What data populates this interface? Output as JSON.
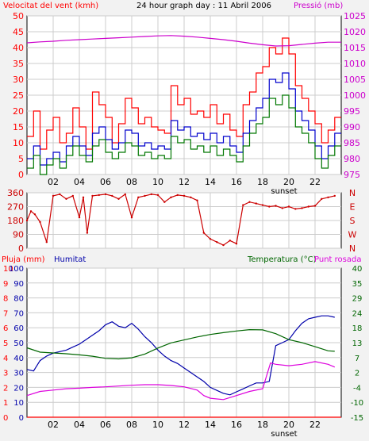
{
  "header": {
    "wind_label": "Velocitat del vent (kmh)",
    "title": "24 hour graph day : 11 Abril 2006",
    "pressure_label": "Pressió (mb)"
  },
  "middle": {
    "direction_letters": [
      "N",
      "W",
      "S",
      "E",
      "N"
    ]
  },
  "bottom": {
    "rain_label": "Pluja (mm)",
    "humidity_label": "Humitat",
    "temperature_label": "Temperatura (°C)",
    "dewpoint_label": "Punt rosada"
  },
  "colors": {
    "wind_gust": "#ff0000",
    "wind_avg": "#0000cc",
    "wind_min": "#007700",
    "pressure": "#cc00cc",
    "direction": "#cc0000",
    "humidity": "#0000aa",
    "temperature": "#006600",
    "dewpoint": "#dd00dd",
    "rain": "#ff0000",
    "grid": "#cccccc",
    "frame": "#000000",
    "plot_bg": "#ffffff",
    "page_bg": "#f2f2f2"
  },
  "chart_data": [
    {
      "type": "line",
      "title": "24 hour graph day : 11 Abril 2006",
      "x_tick_labels": [
        "02",
        "04",
        "06",
        "08",
        "10",
        "12",
        "14",
        "16",
        "18",
        "20",
        "22"
      ],
      "x_ticks": [
        2,
        4,
        6,
        8,
        10,
        12,
        14,
        16,
        18,
        20,
        22
      ],
      "xlim": [
        0,
        24
      ],
      "x_annotation": "sunset",
      "x_annotation_at": 20,
      "ylabel_left": "Velocitat del vent (kmh)",
      "ylim_left": [
        0,
        50
      ],
      "y_ticks_left": [
        0,
        5,
        10,
        15,
        20,
        25,
        30,
        35,
        40,
        45,
        50
      ],
      "ylabel_right": "Pressió (mb)",
      "ylim_right": [
        975,
        1025
      ],
      "y_ticks_right": [
        975,
        980,
        985,
        990,
        995,
        1000,
        1005,
        1010,
        1015,
        1020,
        1025
      ],
      "grid": true,
      "series": [
        {
          "name": "",
          "axis": "left",
          "color": "#ff0000",
          "x": [
            0,
            0.5,
            1,
            1.5,
            2,
            2.5,
            3,
            3.5,
            4,
            4.5,
            5,
            5.5,
            6,
            6.5,
            7,
            7.5,
            8,
            8.5,
            9,
            9.5,
            10,
            10.5,
            11,
            11.5,
            12,
            12.5,
            13,
            13.5,
            14,
            14.5,
            15,
            15.5,
            16,
            16.5,
            17,
            17.5,
            18,
            18.5,
            19,
            19.5,
            20,
            20.5,
            21,
            21.5,
            22,
            22.5,
            23,
            23.5
          ],
          "y": [
            12,
            20,
            8,
            14,
            18,
            10,
            13,
            21,
            15,
            8,
            26,
            22,
            18,
            10,
            16,
            24,
            21,
            16,
            18,
            15,
            14,
            13,
            28,
            22,
            24,
            19,
            20,
            18,
            22,
            16,
            19,
            14,
            12,
            22,
            26,
            32,
            34,
            40,
            38,
            43,
            38,
            28,
            24,
            20,
            16,
            10,
            14,
            18
          ]
        },
        {
          "name": "",
          "axis": "left",
          "color": "#0000cc",
          "x": [
            0,
            0.5,
            1,
            1.5,
            2,
            2.5,
            3,
            3.5,
            4,
            4.5,
            5,
            5.5,
            6,
            6.5,
            7,
            7.5,
            8,
            8.5,
            9,
            9.5,
            10,
            10.5,
            11,
            11.5,
            12,
            12.5,
            13,
            13.5,
            14,
            14.5,
            15,
            15.5,
            16,
            16.5,
            17,
            17.5,
            18,
            18.5,
            19,
            19.5,
            20,
            20.5,
            21,
            21.5,
            22,
            22.5,
            23,
            23.5
          ],
          "y": [
            5,
            9,
            3,
            5,
            7,
            4,
            9,
            12,
            9,
            6,
            13,
            15,
            11,
            8,
            10,
            14,
            13,
            9,
            10,
            8,
            9,
            8,
            17,
            14,
            15,
            12,
            13,
            11,
            13,
            10,
            12,
            9,
            7,
            13,
            17,
            21,
            24,
            30,
            29,
            32,
            27,
            20,
            17,
            14,
            9,
            5,
            9,
            13
          ]
        },
        {
          "name": "",
          "axis": "left",
          "color": "#007700",
          "x": [
            0,
            0.5,
            1,
            1.5,
            2,
            2.5,
            3,
            3.5,
            4,
            4.5,
            5,
            5.5,
            6,
            6.5,
            7,
            7.5,
            8,
            8.5,
            9,
            9.5,
            10,
            10.5,
            11,
            11.5,
            12,
            12.5,
            13,
            13.5,
            14,
            14.5,
            15,
            15.5,
            16,
            16.5,
            17,
            17.5,
            18,
            18.5,
            19,
            19.5,
            20,
            20.5,
            21,
            21.5,
            22,
            22.5,
            23,
            23.5
          ],
          "y": [
            2,
            6,
            0,
            3,
            5,
            2,
            6,
            9,
            6,
            4,
            9,
            11,
            7,
            5,
            7,
            10,
            9,
            6,
            7,
            5,
            6,
            5,
            12,
            10,
            11,
            8,
            9,
            7,
            9,
            6,
            8,
            6,
            4,
            9,
            13,
            16,
            18,
            24,
            22,
            25,
            21,
            15,
            13,
            10,
            5,
            2,
            6,
            9
          ]
        },
        {
          "name": "",
          "axis": "right",
          "color": "#cc00cc",
          "x": [
            0,
            1,
            2,
            3,
            4,
            5,
            6,
            7,
            8,
            9,
            10,
            11,
            12,
            13,
            14,
            15,
            16,
            17,
            18,
            19,
            20,
            21,
            22,
            23,
            24
          ],
          "y": [
            1016.5,
            1016.8,
            1017.0,
            1017.3,
            1017.5,
            1017.7,
            1017.9,
            1018.1,
            1018.3,
            1018.5,
            1018.7,
            1018.8,
            1018.6,
            1018.3,
            1017.9,
            1017.5,
            1017.0,
            1016.4,
            1015.9,
            1015.5,
            1015.6,
            1016.0,
            1016.4,
            1016.7,
            1016.7
          ]
        }
      ]
    },
    {
      "type": "scatter",
      "x_tick_labels": [],
      "xlim": [
        0,
        24
      ],
      "ylim": [
        0,
        360
      ],
      "y_ticks_left": [
        0,
        90,
        180,
        270,
        360
      ],
      "right_labels": [
        "N",
        "W",
        "S",
        "E",
        "N"
      ],
      "grid": true,
      "series": [
        {
          "name": "",
          "color": "#cc0000",
          "x": [
            0,
            0.3,
            0.6,
            1,
            1.5,
            2,
            2.5,
            3,
            3.5,
            4,
            4.3,
            4.6,
            5,
            5.5,
            6,
            6.5,
            7,
            7.5,
            8,
            8.5,
            9,
            9.5,
            10,
            10.5,
            11,
            11.5,
            12,
            12.5,
            13,
            13.5,
            14,
            14.5,
            15,
            15.5,
            16,
            16.5,
            17,
            17.5,
            18,
            18.5,
            19,
            19.5,
            20,
            20.5,
            21,
            21.5,
            22,
            22.5,
            23,
            23.5
          ],
          "y": [
            180,
            240,
            220,
            170,
            40,
            340,
            350,
            320,
            340,
            200,
            330,
            100,
            340,
            345,
            350,
            340,
            320,
            350,
            200,
            330,
            340,
            350,
            345,
            300,
            330,
            345,
            340,
            330,
            310,
            100,
            60,
            40,
            20,
            50,
            30,
            280,
            300,
            290,
            280,
            270,
            275,
            260,
            270,
            255,
            260,
            270,
            275,
            320,
            330,
            340
          ]
        }
      ]
    },
    {
      "type": "line",
      "x_tick_labels": [
        "02",
        "04",
        "06",
        "08",
        "10",
        "12",
        "14",
        "16",
        "18",
        "20",
        "22"
      ],
      "x_ticks": [
        2,
        4,
        6,
        8,
        10,
        12,
        14,
        16,
        18,
        20,
        22
      ],
      "xlim": [
        0,
        24
      ],
      "x_annotation": "sunset",
      "x_annotation_at": 20,
      "ylabel_left": "Pluja (mm)",
      "rain_ticks": [
        0,
        1,
        2,
        3,
        4,
        5,
        6,
        7,
        8,
        9,
        10
      ],
      "humidity_ticks": [
        0,
        10,
        20,
        30,
        40,
        50,
        60,
        70,
        80,
        90,
        100
      ],
      "ylabel_right": "Temperatura (°C)",
      "temp_ticks": [
        -15,
        -10,
        -4,
        2,
        7,
        13,
        18,
        24,
        29,
        35,
        40
      ],
      "temp_ylim": [
        -15,
        40
      ],
      "humidity_ylim": [
        0,
        100
      ],
      "grid": true,
      "series": [
        {
          "name": "Humitat",
          "axis": "humidity",
          "color": "#0000aa",
          "x": [
            0,
            0.5,
            1,
            1.5,
            2,
            2.5,
            3,
            3.5,
            4,
            4.5,
            5,
            5.5,
            6,
            6.5,
            7,
            7.5,
            8,
            8.5,
            9,
            9.5,
            10,
            10.5,
            11,
            11.5,
            12,
            12.5,
            13,
            13.5,
            14,
            14.5,
            15,
            15.5,
            16,
            16.5,
            17,
            17.5,
            18,
            18.5,
            19,
            19.5,
            20,
            20.5,
            21,
            21.5,
            22,
            22.5,
            23,
            23.5
          ],
          "y": [
            32,
            31,
            38,
            41,
            43,
            44,
            45,
            47,
            49,
            52,
            55,
            58,
            62,
            64,
            61,
            60,
            63,
            59,
            54,
            50,
            45,
            41,
            38,
            36,
            33,
            30,
            27,
            24,
            20,
            18,
            16,
            15,
            17,
            19,
            21,
            23,
            23,
            24,
            48,
            50,
            52,
            58,
            63,
            66,
            67,
            68,
            68,
            67
          ]
        },
        {
          "name": "Temperatura (°C)",
          "axis": "temp",
          "color": "#006600",
          "x": [
            0,
            1,
            2,
            3,
            4,
            5,
            6,
            7,
            8,
            9,
            10,
            11,
            12,
            13,
            14,
            15,
            16,
            17,
            18,
            19,
            20,
            21,
            22,
            23,
            23.5
          ],
          "y": [
            10.6,
            9.0,
            8.7,
            8.4,
            8.0,
            7.5,
            6.7,
            6.5,
            6.9,
            8.3,
            10.5,
            12.4,
            13.5,
            14.6,
            15.5,
            16.2,
            16.8,
            17.3,
            17.2,
            15.8,
            13.6,
            12.5,
            11.0,
            9.5,
            9.3
          ]
        },
        {
          "name": "Punt rosada",
          "axis": "temp",
          "color": "#dd00dd",
          "x": [
            0,
            1,
            2,
            3,
            4,
            5,
            6,
            7,
            8,
            9,
            10,
            11,
            12,
            13,
            13.5,
            14,
            15,
            16,
            17,
            18,
            18.6,
            19,
            20,
            21,
            22,
            23,
            23.5
          ],
          "y": [
            -7.0,
            -5.5,
            -5.0,
            -4.5,
            -4.3,
            -4.0,
            -3.8,
            -3.5,
            -3.2,
            -3.0,
            -3.0,
            -3.3,
            -3.8,
            -5.0,
            -7.0,
            -8.0,
            -8.5,
            -7.0,
            -5.5,
            -4.5,
            5.0,
            4.5,
            4.0,
            4.5,
            5.5,
            4.5,
            3.5
          ]
        },
        {
          "name": "Pluja (mm)",
          "axis": "rain",
          "color": "#ff0000",
          "x": [
            0,
            24
          ],
          "y": [
            0,
            0
          ]
        }
      ]
    }
  ]
}
